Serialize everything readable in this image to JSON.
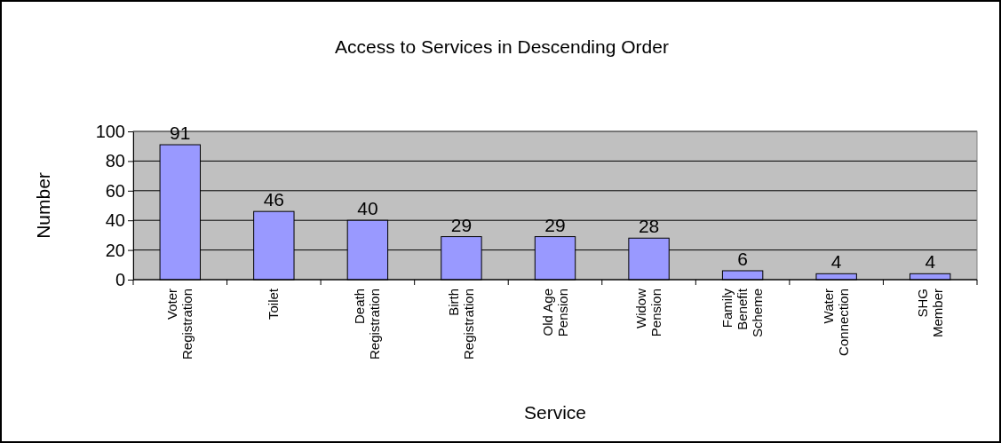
{
  "chart_data": {
    "type": "bar",
    "title": "Access to Services in Descending Order",
    "xlabel": "Service",
    "ylabel": "Number",
    "categories": [
      "Voter Registration",
      "Toilet",
      "Death Registration",
      "Birth Registration",
      "Old Age Pension",
      "Widow Pension",
      "Family Benefit Scheme",
      "Water Connection",
      "SHG Member"
    ],
    "values": [
      91,
      46,
      40,
      29,
      29,
      28,
      6,
      4,
      4
    ],
    "color": "#9999ff",
    "ylim": [
      0,
      100
    ],
    "yticks": [
      0,
      20,
      40,
      60,
      80,
      100
    ],
    "grid": "y",
    "data_labels": true
  }
}
